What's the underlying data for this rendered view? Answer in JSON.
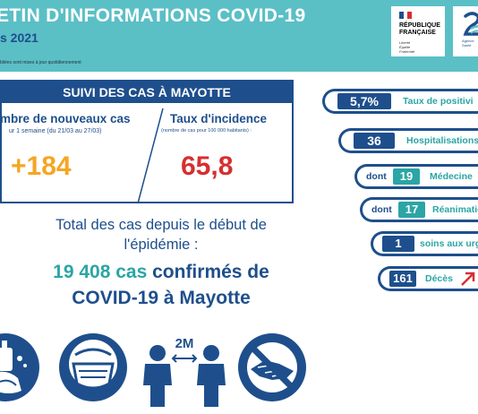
{
  "header": {
    "title": "ETIN D'INFORMATIONS COVID-19",
    "date": "s 2021",
    "note": "bliées sont mises à jour quotidiennement"
  },
  "logos": {
    "republique": [
      "RÉPUBLIQUE",
      "FRANÇAISE"
    ],
    "motto": [
      "Liberté",
      "Égalité",
      "Fraternité"
    ],
    "ars_small": [
      "Agence",
      "Santé"
    ]
  },
  "suivi": {
    "title": "SUIVI DES CAS À MAYOTTE",
    "new_cases": {
      "label": "mbre de nouveaux cas",
      "sub": "ur 1 semaine (du 21/03 au 27/03)",
      "value": "+184"
    },
    "incidence": {
      "label": "Taux d'incidence",
      "sub": "(nombre de cas pour 100 000 habitants) :",
      "value": "65,8"
    }
  },
  "total": {
    "line1": "Total des cas depuis le début de",
    "line2": "l'épidémie :",
    "count": "19 408 cas",
    "confirmed": "confirmés de",
    "line4": "COVID-19 à Mayotte"
  },
  "indicators": {
    "positivite": {
      "value": "5,7%",
      "label": "Taux de positivi"
    },
    "hospitalisations": {
      "value": "36",
      "label": "Hospitalisations"
    },
    "medecine": {
      "dont": "dont",
      "value": "19",
      "label": "Médecine"
    },
    "reanimation": {
      "dont": "dont",
      "value": "17",
      "label": "Réanimatio"
    },
    "urgences": {
      "value": "1",
      "label": "soins aux urge"
    },
    "deces": {
      "value": "161",
      "label": "Décès"
    }
  },
  "distance": {
    "label": "2M"
  },
  "colors": {
    "navy": "#1e4f8c",
    "teal": "#2ba5a5",
    "header": "#5bbfc6",
    "orange": "#f5a623",
    "red": "#d62f2f"
  }
}
